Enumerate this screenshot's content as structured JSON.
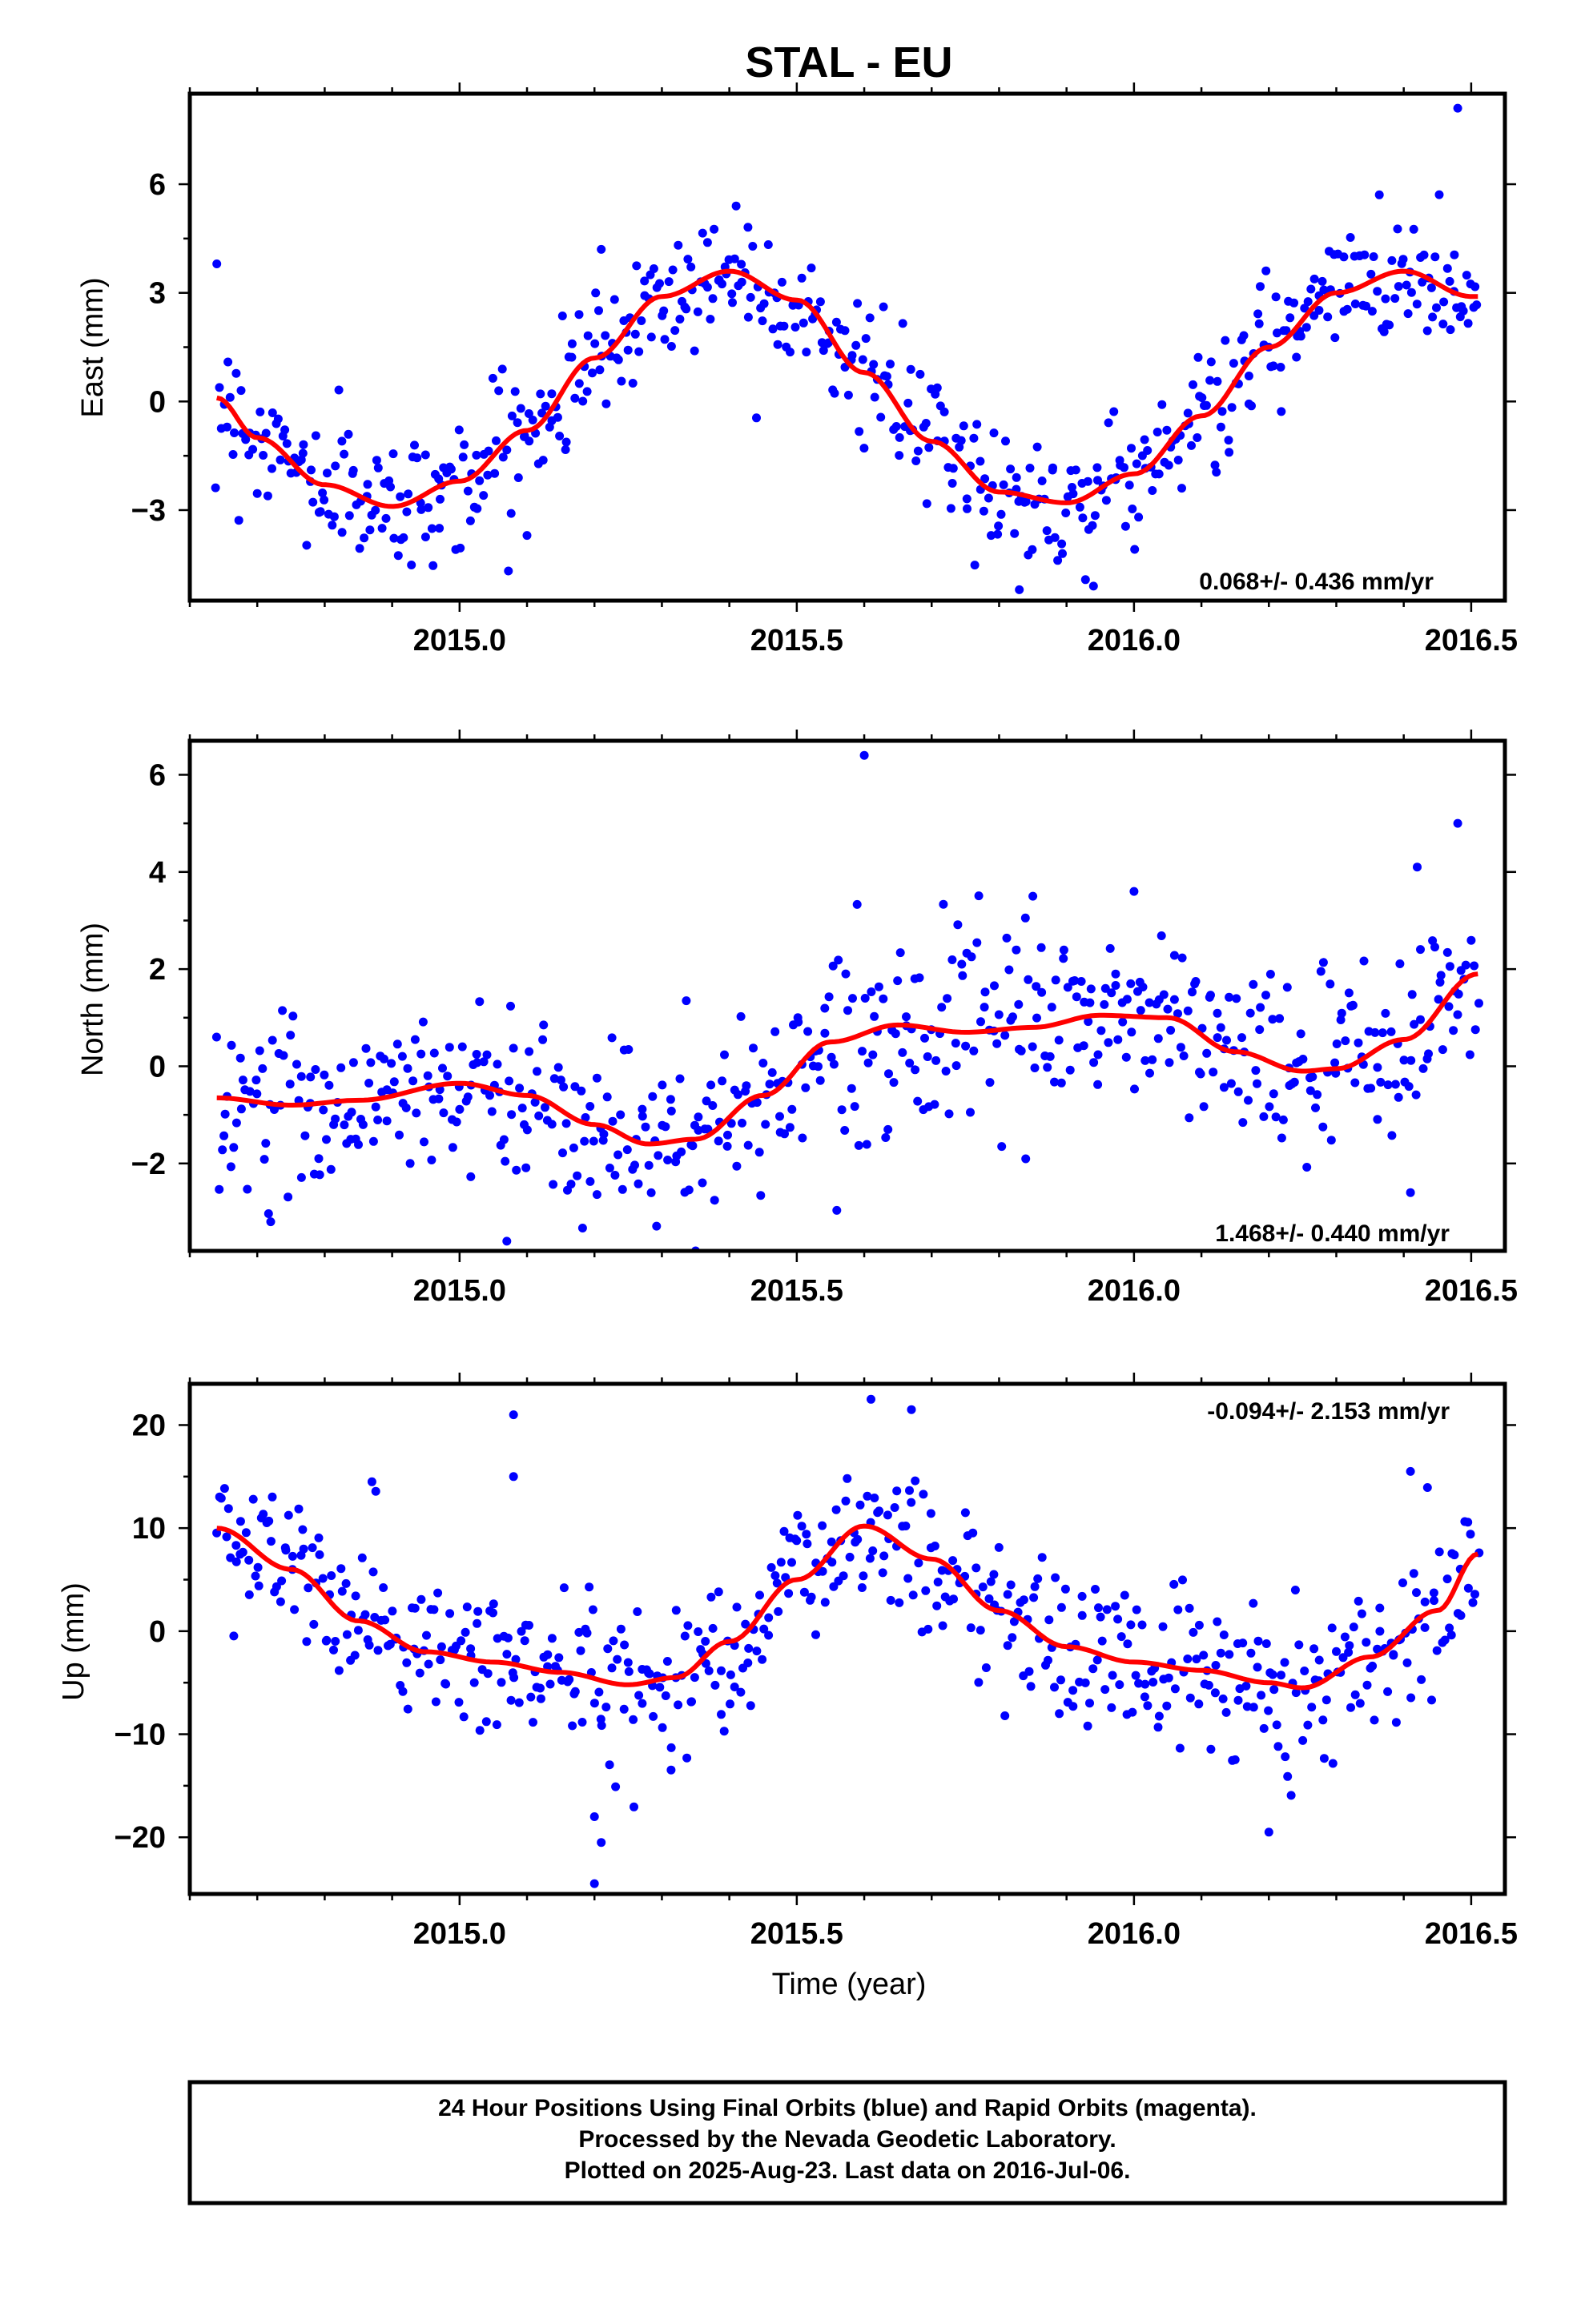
{
  "chart_data": {
    "title": "STAL - EU",
    "xlabel": "Time (year)",
    "x_ticks": [
      2015.0,
      2015.5,
      2016.0,
      2016.5
    ],
    "x_tick_labels": [
      "2015.0",
      "2015.5",
      "2016.0",
      "2016.5"
    ],
    "xlim": [
      2014.6,
      2016.55
    ],
    "data_start": 2014.64,
    "data_end": 2016.51,
    "colors": {
      "points": "#0000ff",
      "fit": "#ff0000",
      "frame": "#000000"
    },
    "panels": [
      {
        "type": "scatter",
        "ylabel": "East (mm)",
        "ylim": [
          -5.5,
          8.5
        ],
        "y_ticks": [
          -3,
          0,
          3,
          6
        ],
        "y_tick_labels": [
          "−3",
          "0",
          "3",
          "6"
        ],
        "rate": "0.068+/- 0.436 mm/yr",
        "rate_position": "bottom-right",
        "fit": [
          [
            2014.64,
            0.1
          ],
          [
            2014.7,
            -1.0
          ],
          [
            2014.8,
            -2.3
          ],
          [
            2014.9,
            -2.9
          ],
          [
            2015.0,
            -2.2
          ],
          [
            2015.1,
            -0.8
          ],
          [
            2015.2,
            1.2
          ],
          [
            2015.3,
            2.9
          ],
          [
            2015.4,
            3.6
          ],
          [
            2015.5,
            2.8
          ],
          [
            2015.6,
            0.8
          ],
          [
            2015.7,
            -1.1
          ],
          [
            2015.8,
            -2.5
          ],
          [
            2015.9,
            -2.8
          ],
          [
            2016.0,
            -2.0
          ],
          [
            2016.1,
            -0.4
          ],
          [
            2016.2,
            1.5
          ],
          [
            2016.3,
            3.0
          ],
          [
            2016.4,
            3.6
          ],
          [
            2016.5,
            2.9
          ]
        ],
        "noise": 0.9,
        "outliers": [
          [
            2014.64,
            3.8
          ],
          [
            2016.48,
            8.1
          ],
          [
            2015.21,
            4.2
          ],
          [
            2015.41,
            5.4
          ],
          [
            2015.1,
            -3.7
          ],
          [
            2015.83,
            -5.2
          ],
          [
            2015.94,
            -5.1
          ],
          [
            2014.97,
            -3.5
          ]
        ]
      },
      {
        "type": "scatter",
        "ylabel": "North (mm)",
        "ylim": [
          -3.8,
          6.7
        ],
        "y_ticks": [
          -2,
          0,
          2,
          4,
          6
        ],
        "y_tick_labels": [
          "−2",
          "0",
          "2",
          "4",
          "6"
        ],
        "rate": "1.468+/- 0.440 mm/yr",
        "rate_position": "bottom-right",
        "fit": [
          [
            2014.64,
            -0.65
          ],
          [
            2014.75,
            -0.8
          ],
          [
            2014.85,
            -0.7
          ],
          [
            2015.0,
            -0.35
          ],
          [
            2015.1,
            -0.6
          ],
          [
            2015.2,
            -1.2
          ],
          [
            2015.28,
            -1.6
          ],
          [
            2015.35,
            -1.5
          ],
          [
            2015.45,
            -0.6
          ],
          [
            2015.55,
            0.5
          ],
          [
            2015.65,
            0.85
          ],
          [
            2015.75,
            0.7
          ],
          [
            2015.85,
            0.8
          ],
          [
            2015.95,
            1.05
          ],
          [
            2016.05,
            1.0
          ],
          [
            2016.15,
            0.3
          ],
          [
            2016.25,
            -0.1
          ],
          [
            2016.3,
            -0.05
          ],
          [
            2016.4,
            0.55
          ],
          [
            2016.51,
            1.9
          ]
        ],
        "noise": 0.9,
        "outliers": [
          [
            2015.6,
            6.4
          ],
          [
            2016.48,
            5.0
          ],
          [
            2016.42,
            4.1
          ],
          [
            2015.85,
            3.5
          ],
          [
            2016.0,
            3.6
          ],
          [
            2015.07,
            -3.6
          ],
          [
            2015.35,
            -3.8
          ],
          [
            2014.72,
            -3.2
          ],
          [
            2016.41,
            -2.6
          ]
        ]
      },
      {
        "type": "scatter",
        "ylabel": "Up (mm)",
        "ylim": [
          -25.5,
          24
        ],
        "y_ticks": [
          -20,
          -10,
          0,
          10,
          20
        ],
        "y_tick_labels": [
          "−20",
          "−10",
          "0",
          "10",
          "20"
        ],
        "rate": "-0.094+/- 2.153 mm/yr",
        "rate_position": "top-right",
        "fit": [
          [
            2014.64,
            10.0
          ],
          [
            2014.75,
            6.0
          ],
          [
            2014.85,
            1.0
          ],
          [
            2014.95,
            -2.0
          ],
          [
            2015.05,
            -3.0
          ],
          [
            2015.15,
            -4.0
          ],
          [
            2015.25,
            -5.2
          ],
          [
            2015.32,
            -4.5
          ],
          [
            2015.4,
            -1.0
          ],
          [
            2015.5,
            5.0
          ],
          [
            2015.6,
            10.2
          ],
          [
            2015.7,
            7.0
          ],
          [
            2015.8,
            2.0
          ],
          [
            2015.9,
            -1.5
          ],
          [
            2016.0,
            -3.0
          ],
          [
            2016.1,
            -3.8
          ],
          [
            2016.2,
            -5.0
          ],
          [
            2016.25,
            -5.5
          ],
          [
            2016.35,
            -2.5
          ],
          [
            2016.45,
            2.0
          ],
          [
            2016.51,
            7.5
          ]
        ],
        "noise": 3.8,
        "outliers": [
          [
            2015.61,
            22.5
          ],
          [
            2015.08,
            21.0
          ],
          [
            2015.67,
            21.5
          ],
          [
            2015.08,
            15.0
          ],
          [
            2016.41,
            15.5
          ],
          [
            2015.2,
            -24.5
          ],
          [
            2015.21,
            -20.5
          ],
          [
            2016.2,
            -19.5
          ],
          [
            2014.87,
            14.5
          ],
          [
            2015.2,
            -18.0
          ]
        ]
      }
    ]
  },
  "footer": {
    "line1": "24 Hour Positions Using Final Orbits (blue) and Rapid Orbits (magenta).",
    "line2": "Processed by the Nevada Geodetic Laboratory.",
    "line3": "Plotted on 2025-Aug-23. Last data on 2016-Jul-06."
  }
}
